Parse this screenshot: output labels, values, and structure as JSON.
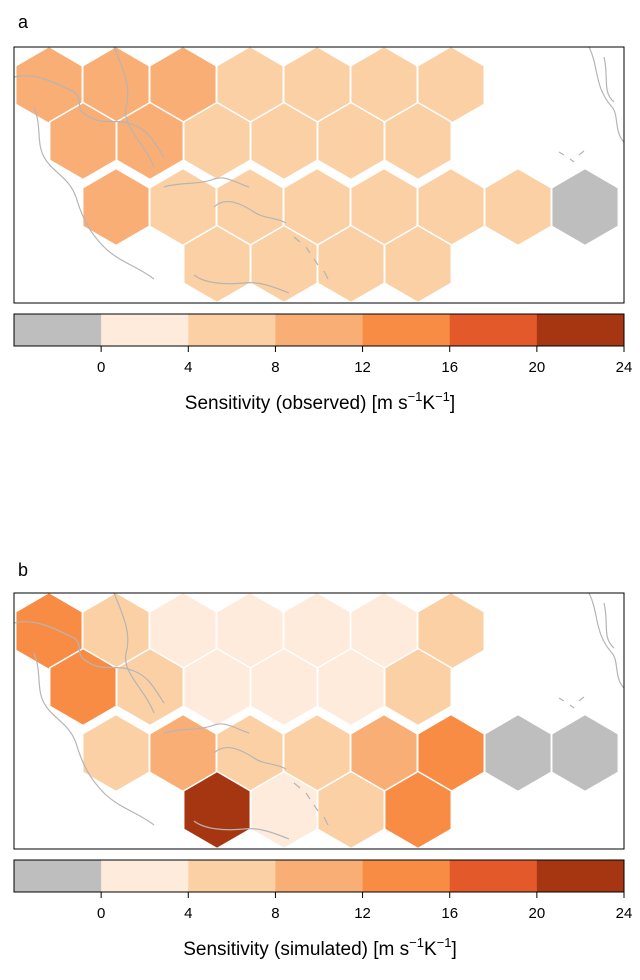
{
  "chart_data": [
    {
      "type": "heatmap",
      "panel_label": "a",
      "legend_title": "Sensitivity (observed) [m s",
      "legend_sup1": "−1",
      "legend_mid": "K",
      "legend_sup2": "−1",
      "legend_end": "]",
      "rows": [
        {
          "values": [
            "8-12",
            "8-12",
            "8-12",
            "4-8",
            "4-8",
            "4-8",
            "4-8"
          ]
        },
        {
          "values": [
            "8-12",
            "8-12",
            "4-8",
            "4-8",
            "4-8",
            "4-8"
          ]
        },
        {
          "values": [
            "8-12",
            "4-8",
            "4-8",
            "4-8",
            "4-8",
            "4-8",
            "4-8",
            "<0"
          ]
        },
        {
          "values": [
            "4-8",
            "4-8",
            "4-8",
            "4-8"
          ]
        }
      ]
    },
    {
      "type": "heatmap",
      "panel_label": "b",
      "legend_title": "Sensitivity (simulated) [m s",
      "legend_sup1": "−1",
      "legend_mid": "K",
      "legend_sup2": "−1",
      "legend_end": "]",
      "rows": [
        {
          "values": [
            "12-16",
            "4-8",
            "0-4",
            "0-4",
            "0-4",
            "0-4",
            "4-8"
          ]
        },
        {
          "values": [
            "12-16",
            "4-8",
            "0-4",
            "0-4",
            "0-4",
            "4-8"
          ]
        },
        {
          "values": [
            "4-8",
            "8-12",
            "4-8",
            "4-8",
            "8-12",
            "12-16",
            "<0",
            "<0"
          ]
        },
        {
          "values": [
            "20-24",
            "0-4",
            "4-8",
            "12-16"
          ]
        }
      ]
    }
  ],
  "colorbar": {
    "ticks": [
      "0",
      "4",
      "8",
      "12",
      "16",
      "20",
      "24"
    ],
    "bins": [
      {
        "key": "<0",
        "color": "#bebebe"
      },
      {
        "key": "0-4",
        "color": "#feebdb"
      },
      {
        "key": "4-8",
        "color": "#fbd0a5"
      },
      {
        "key": "8-12",
        "color": "#f9ae75"
      },
      {
        "key": "12-16",
        "color": "#f88c45"
      },
      {
        "key": "16-20",
        "color": "#e4592a"
      },
      {
        "key": "20-24",
        "color": "#a63612"
      }
    ]
  }
}
